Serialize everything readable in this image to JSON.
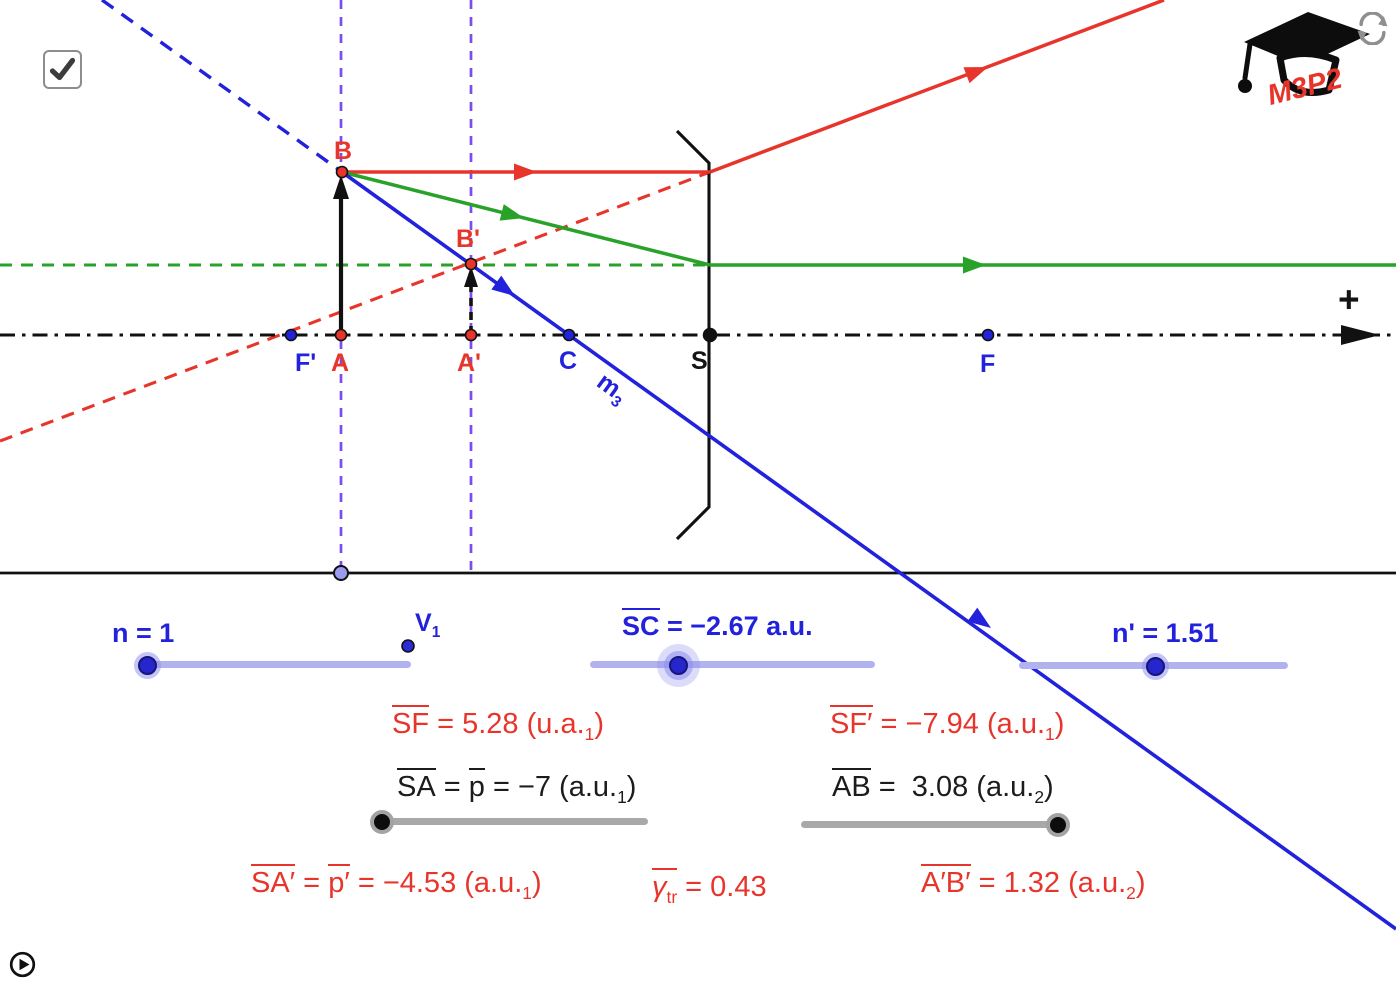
{
  "logo": {
    "text": "M3P2"
  },
  "icons": {
    "checkbox": "checkmark-icon",
    "refresh": "refresh-icon",
    "play": "play-icon",
    "logo": "graduation-cap-icon"
  },
  "colors": {
    "red": "#e8352b",
    "blue": "#2222dd",
    "green": "#28a228",
    "purple": "#7d4de8",
    "axis_black": "#111111",
    "slider_track_blue": "#b2b2ef",
    "slider_handle_blue": "#2626cc",
    "slider_track_gray": "#a9a9a9",
    "slider_handle_gray": "#0d0d0d",
    "ground_point_fill": "#9b9bef"
  },
  "diagram": {
    "plus_sign": "+",
    "labels": {
      "B": "B",
      "B_prime": "B'",
      "A": "A",
      "A_prime": "A'",
      "F_prime": "F'",
      "C": "C",
      "S": "S",
      "F": "F",
      "m3_base": "m",
      "m3_sub": "3",
      "V1_base": "V",
      "V1_sub": "1"
    }
  },
  "sliders": {
    "n": {
      "label": "n = 1"
    },
    "sc": {
      "label_rich": [
        {
          "t": "SC",
          "o": true
        },
        {
          "t": " = −2.67 a.u."
        }
      ]
    },
    "n_prime": {
      "label": "n' = 1.51"
    }
  },
  "measurements": {
    "sf": [
      {
        "t": "SF",
        "o": true
      },
      {
        "t": " = 5.28 (u.a."
      },
      {
        "t": "1",
        "s": true
      },
      {
        "t": ")"
      }
    ],
    "sf_prime": [
      {
        "t": "SF′",
        "o": true
      },
      {
        "t": " = −7.94 (a.u."
      },
      {
        "t": "1",
        "s": true
      },
      {
        "t": ")"
      }
    ],
    "sa": [
      {
        "t": "SA",
        "o": true
      },
      {
        "t": " = "
      },
      {
        "t": "p",
        "o": true
      },
      {
        "t": " = −7 (a.u."
      },
      {
        "t": "1",
        "s": true
      },
      {
        "t": ")"
      }
    ],
    "ab": [
      {
        "t": "AB",
        "o": true
      },
      {
        "t": " =  3.08 (a.u."
      },
      {
        "t": "2",
        "s": true
      },
      {
        "t": ")"
      }
    ],
    "sa_prime": [
      {
        "t": "SA′",
        "o": true
      },
      {
        "t": " = "
      },
      {
        "t": "p′",
        "o": true
      },
      {
        "t": " = −4.53 (a.u."
      },
      {
        "t": "1",
        "s": true
      },
      {
        "t": ")"
      }
    ],
    "gamma_tr": [
      {
        "t": "γ",
        "o": true,
        "i": true
      },
      {
        "t": "tr",
        "o": true,
        "s": true
      },
      {
        "t": " = 0.43"
      }
    ],
    "ab_prime": [
      {
        "t": "A′B′",
        "o": true
      },
      {
        "t": " = 1.32 (a.u."
      },
      {
        "t": "2",
        "s": true
      },
      {
        "t": ")"
      }
    ]
  }
}
